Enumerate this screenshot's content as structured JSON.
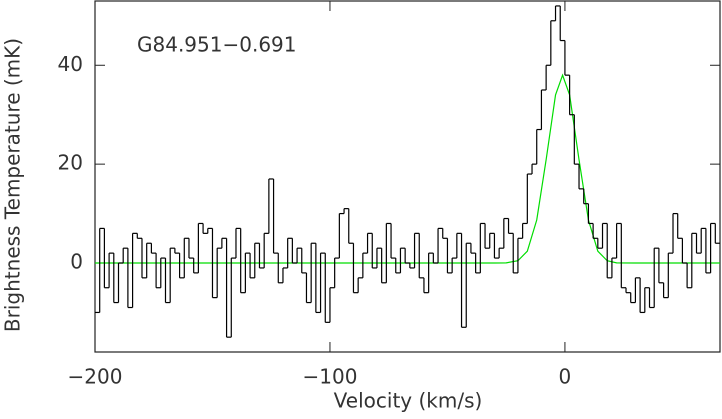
{
  "chart_data": {
    "type": "step",
    "annotation": "G84.951−0.691",
    "xlabel": "Velocity (km/s)",
    "ylabel": "Brightness Temperature (mK)",
    "xlim": [
      -200,
      66
    ],
    "ylim": [
      -18,
      53
    ],
    "xticks": [
      {
        "value": -200,
        "label": "−200"
      },
      {
        "value": -100,
        "label": "−100"
      },
      0
    ],
    "yticks": [
      0,
      20,
      40
    ],
    "spectrum": {
      "color": "#000000",
      "x": [
        -199,
        -197,
        -195,
        -193,
        -191,
        -189,
        -187,
        -185,
        -183,
        -181,
        -179,
        -177,
        -175,
        -173,
        -171,
        -169,
        -167,
        -165,
        -163,
        -161,
        -159,
        -157,
        -155,
        -153,
        -151,
        -149,
        -147,
        -145,
        -143,
        -141,
        -139,
        -137,
        -135,
        -133,
        -131,
        -129,
        -127,
        -125,
        -123,
        -121,
        -119,
        -117,
        -115,
        -113,
        -111,
        -109,
        -107,
        -105,
        -103,
        -101,
        -99,
        -97,
        -95,
        -93,
        -91,
        -89,
        -87,
        -85,
        -83,
        -81,
        -79,
        -77,
        -75,
        -73,
        -71,
        -69,
        -67,
        -65,
        -63,
        -61,
        -59,
        -57,
        -55,
        -53,
        -51,
        -49,
        -47,
        -45,
        -43,
        -41,
        -39,
        -37,
        -35,
        -33,
        -31,
        -29,
        -27,
        -25,
        -23,
        -21,
        -19,
        -17,
        -15,
        -13,
        -11,
        -9,
        -7,
        -5,
        -3,
        -1,
        1,
        3,
        5,
        7,
        9,
        11,
        13,
        15,
        17,
        19,
        21,
        23,
        25,
        27,
        29,
        31,
        33,
        35,
        37,
        39,
        41,
        43,
        45,
        47,
        49,
        51,
        53,
        55,
        57,
        59,
        61,
        63,
        65
      ],
      "values": [
        -10,
        7,
        -5,
        2,
        -8,
        0,
        3,
        -9,
        6,
        5,
        -3,
        4,
        2,
        -5,
        1,
        -8,
        3,
        2,
        -3,
        5,
        1,
        -2,
        8,
        6,
        7,
        -7,
        3,
        5,
        -15,
        1,
        7,
        -6,
        2,
        -3,
        4,
        -1,
        6,
        17,
        2,
        -4,
        -1,
        5,
        0,
        3,
        -2,
        -8,
        4,
        -10,
        2,
        -12,
        -5,
        1,
        10,
        11,
        4,
        -6,
        -3,
        2,
        6,
        -1,
        3,
        -4,
        8,
        1,
        -2,
        3,
        0,
        -1,
        6,
        -3,
        -6,
        2,
        0,
        7,
        5,
        -2,
        1,
        6,
        -13,
        4,
        2,
        -2,
        8,
        3,
        6,
        1,
        3,
        9,
        6,
        -2,
        5,
        8,
        18,
        20,
        27,
        35,
        40,
        49,
        52,
        45,
        38,
        30,
        20,
        15,
        12,
        8,
        5,
        3,
        8,
        -3,
        1,
        8,
        -5,
        -6,
        -8,
        -3,
        -10,
        -5,
        -9,
        3,
        -4,
        -7,
        2,
        10,
        5,
        0,
        -5,
        6,
        2,
        7,
        -2,
        8,
        4
      ]
    },
    "fit": {
      "color": "#00dd00",
      "x": [
        -200,
        -40,
        -30,
        -25,
        -20,
        -16,
        -12,
        -8,
        -4,
        -1,
        2,
        6,
        10,
        14,
        18,
        22,
        30,
        66
      ],
      "values": [
        0,
        0,
        0,
        0.03,
        0.46,
        2.4,
        8.7,
        20.9,
        34,
        38,
        34,
        20.9,
        8.7,
        2.4,
        0.46,
        0.03,
        0,
        0
      ]
    }
  }
}
